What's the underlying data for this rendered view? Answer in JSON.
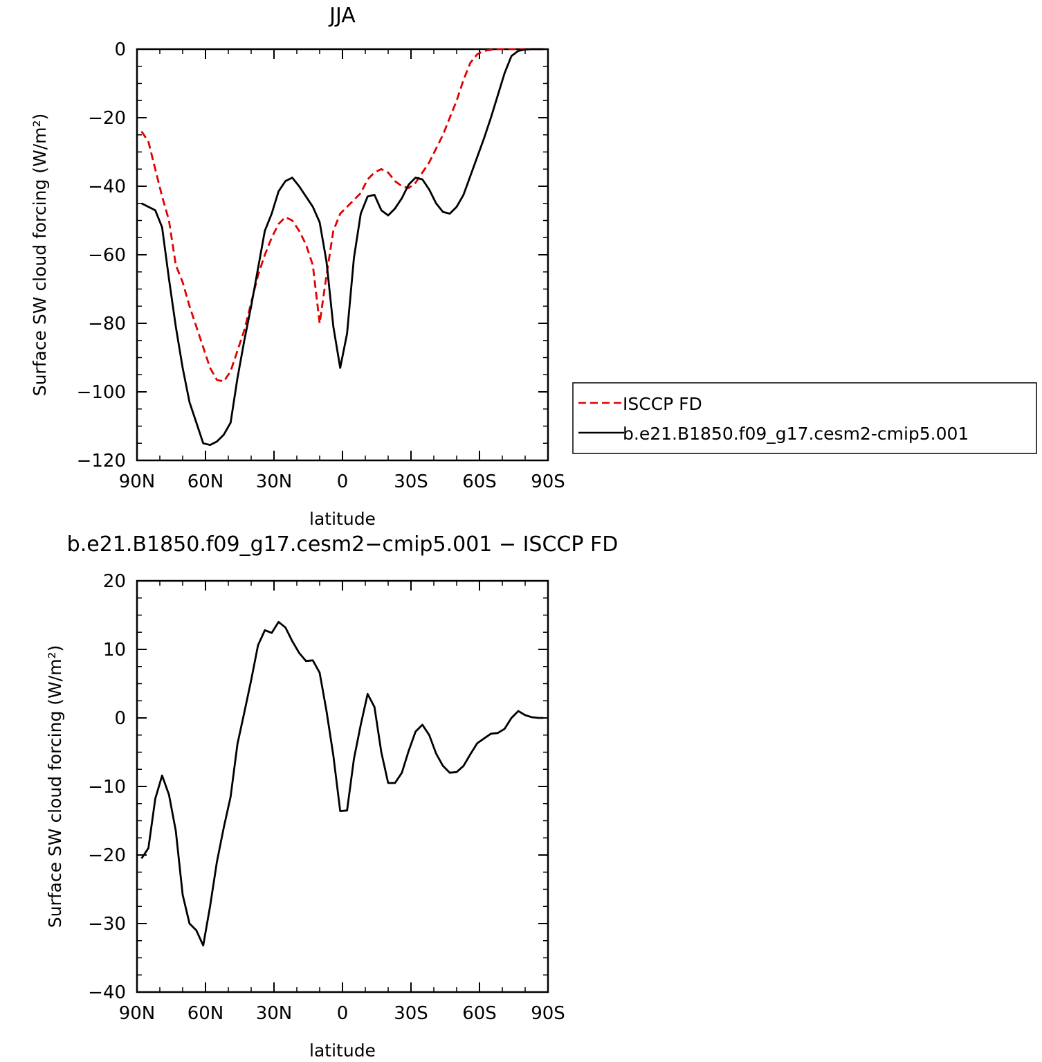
{
  "chart_data": [
    {
      "type": "line",
      "title": "JJA",
      "xlabel": "latitude",
      "ylabel": "Surface SW cloud forcing (W/m²)",
      "xlim": [
        90,
        -90
      ],
      "ylim": [
        -120,
        0
      ],
      "xticks": [
        90,
        60,
        30,
        0,
        -30,
        -60,
        -90
      ],
      "xtick_labels": [
        "90N",
        "60N",
        "30N",
        "0",
        "30S",
        "60S",
        "90S"
      ],
      "yticks": [
        0,
        -20,
        -40,
        -60,
        -80,
        -100,
        -120
      ],
      "ytick_labels": [
        "0",
        "−20",
        "−40",
        "−60",
        "−80",
        "−100",
        "−120"
      ],
      "legend": "right",
      "series": [
        {
          "name": "ISCCP FD",
          "color": "#e00000",
          "style": "dashed",
          "x": [
            88,
            85,
            82,
            79,
            76,
            73,
            70,
            67,
            64,
            61,
            58,
            55,
            52,
            49,
            46,
            43,
            40,
            37,
            34,
            31,
            28,
            25,
            22,
            19,
            16,
            13,
            10,
            7,
            4,
            1,
            -2,
            -5,
            -8,
            -11,
            -14,
            -17,
            -20,
            -23,
            -26,
            -29,
            -32,
            -35,
            -38,
            -41,
            -44,
            -47,
            -50,
            -53,
            -56,
            -59,
            -62,
            -65,
            -68,
            -71,
            -74,
            -77,
            -80,
            -83,
            -86,
            -88
          ],
          "y": [
            -24,
            -27,
            -35,
            -43,
            -50,
            -63,
            -68,
            -75,
            -81,
            -87,
            -93,
            -96.5,
            -97,
            -94,
            -88,
            -82,
            -74,
            -66,
            -60,
            -55,
            -51,
            -49,
            -50,
            -53,
            -57,
            -63,
            -80,
            -66,
            -53,
            -48,
            -46,
            -44,
            -42,
            -38,
            -36,
            -35,
            -36,
            -38.5,
            -40,
            -40.5,
            -39,
            -36,
            -33,
            -29,
            -25,
            -20,
            -15,
            -9,
            -4,
            -1.5,
            -0.5,
            -0.2,
            0,
            0,
            0,
            0,
            0,
            0,
            0,
            0
          ]
        },
        {
          "name": "b.e21.B1850.f09_g17.cesm2-cmip5.001",
          "color": "#000000",
          "style": "solid",
          "x": [
            88,
            82,
            79,
            76,
            73,
            70,
            67,
            64,
            61,
            58,
            55,
            52,
            49,
            46,
            43,
            40,
            37,
            34,
            31,
            28,
            25,
            22,
            19,
            16,
            13,
            10,
            7,
            4,
            1,
            -2,
            -5,
            -8,
            -11,
            -14,
            -17,
            -20,
            -23,
            -26,
            -29,
            -32,
            -35,
            -38,
            -41,
            -44,
            -47,
            -50,
            -53,
            -56,
            -59,
            -62,
            -65,
            -68,
            -71,
            -74,
            -77,
            -80,
            -83,
            -86,
            -88
          ],
          "y": [
            -45,
            -47,
            -52,
            -67,
            -81,
            -93,
            -103,
            -109,
            -115,
            -115.5,
            -114.5,
            -112.5,
            -109,
            -96,
            -85,
            -75,
            -64,
            -53,
            -48,
            -41.5,
            -38.5,
            -37.5,
            -40,
            -43,
            -46,
            -50.5,
            -62,
            -81,
            -93,
            -83,
            -61,
            -48,
            -43,
            -42.5,
            -47,
            -48.5,
            -46.5,
            -43.5,
            -39.5,
            -37.5,
            -38,
            -41,
            -45,
            -47.5,
            -48,
            -46,
            -42.5,
            -37,
            -31.5,
            -26,
            -20,
            -13.5,
            -7,
            -2,
            -0.5,
            -0.1,
            0,
            0,
            0
          ]
        }
      ]
    },
    {
      "type": "line",
      "title": "b.e21.B1850.f09_g17.cesm2−cmip5.001 − ISCCP FD",
      "xlabel": "latitude",
      "ylabel": "Surface SW cloud forcing (W/m²)",
      "xlim": [
        90,
        -90
      ],
      "ylim": [
        -40,
        20
      ],
      "xticks": [
        90,
        60,
        30,
        0,
        -30,
        -60,
        -90
      ],
      "xtick_labels": [
        "90N",
        "60N",
        "30N",
        "0",
        "30S",
        "60S",
        "90S"
      ],
      "yticks": [
        20,
        10,
        0,
        -10,
        -20,
        -30,
        -40
      ],
      "ytick_labels": [
        "20",
        "10",
        "0",
        "−10",
        "−20",
        "−30",
        "−40"
      ],
      "series": [
        {
          "color": "#000000",
          "style": "solid",
          "x": [
            88,
            85,
            82,
            79,
            76,
            73,
            70,
            67,
            64,
            61,
            58,
            55,
            52,
            49,
            46,
            43,
            40,
            37,
            34,
            31,
            28,
            25,
            22,
            19,
            16,
            13,
            10,
            7,
            4,
            1,
            -2,
            -5,
            -8,
            -11,
            -14,
            -17,
            -20,
            -23,
            -26,
            -29,
            -32,
            -35,
            -38,
            -41,
            -44,
            -47,
            -50,
            -53,
            -56,
            -59,
            -62,
            -65,
            -68,
            -71,
            -74,
            -77,
            -80,
            -83,
            -86,
            -88
          ],
          "y": [
            -20.5,
            -19,
            -11.8,
            -8.4,
            -11.2,
            -16.5,
            -25.8,
            -30,
            -31,
            -33.2,
            -27.5,
            -21,
            -16,
            -11.5,
            -3.8,
            0.8,
            5.5,
            10.6,
            12.8,
            12.4,
            14,
            13.2,
            11.2,
            9.5,
            8.3,
            8.4,
            6.6,
            1,
            -5.5,
            -13.6,
            -13.5,
            -6,
            -1,
            3.5,
            1.6,
            -5,
            -9.5,
            -9.5,
            -8,
            -4.8,
            -2,
            -1,
            -2.5,
            -5.2,
            -7,
            -8,
            -7.9,
            -7,
            -5.3,
            -3.7,
            -3,
            -2.3,
            -2.2,
            -1.6,
            0,
            1,
            0.4,
            0.1,
            0,
            0
          ]
        }
      ]
    }
  ]
}
